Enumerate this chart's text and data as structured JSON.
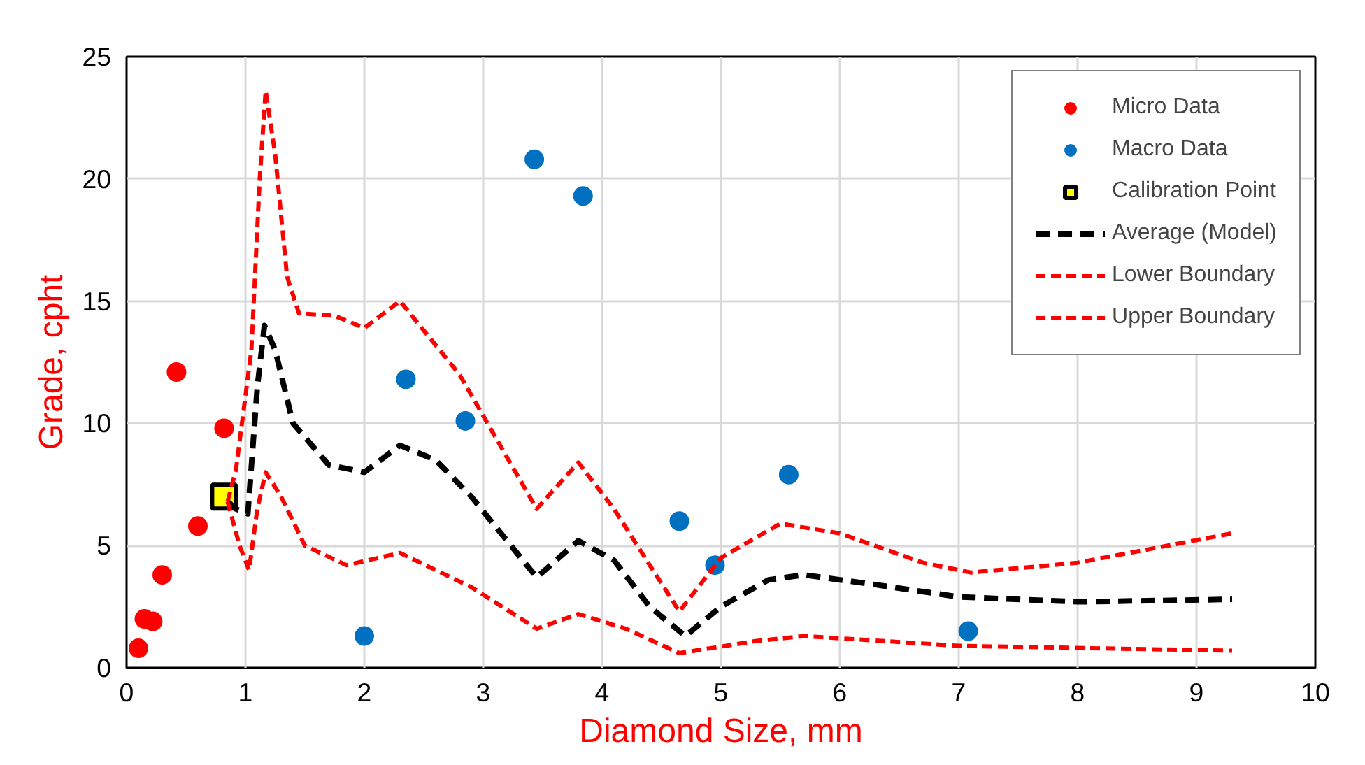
{
  "chart_data": {
    "type": "scatter",
    "xlabel": "Diamond Size, mm",
    "ylabel": "Grade, cpht",
    "xlim": [
      0,
      10
    ],
    "ylim": [
      0,
      25
    ],
    "xticks": [
      0,
      1,
      2,
      3,
      4,
      5,
      6,
      7,
      8,
      9,
      10
    ],
    "yticks": [
      0,
      5,
      10,
      15,
      20,
      25
    ],
    "grid": true,
    "legend": "top right",
    "series": [
      {
        "name": "Micro Data",
        "marker": "circle",
        "color": "#ff0000",
        "x": [
          0.1,
          0.15,
          0.22,
          0.3,
          0.42,
          0.6,
          0.82
        ],
        "values": [
          0.8,
          2.0,
          1.9,
          3.8,
          12.1,
          5.8,
          9.8
        ]
      },
      {
        "name": "Macro Data",
        "marker": "circle",
        "color": "#0070c0",
        "x": [
          2.0,
          2.35,
          2.85,
          3.43,
          3.84,
          4.65,
          4.95,
          5.57,
          7.08
        ],
        "values": [
          1.3,
          11.8,
          10.1,
          20.8,
          19.3,
          6.0,
          4.2,
          7.9,
          1.5
        ]
      },
      {
        "name": "Calibration Point",
        "marker": "square",
        "color": "#ffff00",
        "x": [
          0.82
        ],
        "values": [
          7.0
        ]
      },
      {
        "name": "Average (Model)",
        "type": "line",
        "line_style": "dashed",
        "color": "#000000",
        "x": [
          0.85,
          0.92,
          1.02,
          1.1,
          1.16,
          1.25,
          1.4,
          1.7,
          2.0,
          2.3,
          2.6,
          2.9,
          3.2,
          3.45,
          3.8,
          4.1,
          4.4,
          4.7,
          5.0,
          5.4,
          5.7,
          6.3,
          7.0,
          8.0,
          9.3
        ],
        "values": [
          6.8,
          6.5,
          6.3,
          11.5,
          14.0,
          13.0,
          10.0,
          8.3,
          8.0,
          9.1,
          8.5,
          7.0,
          5.2,
          3.7,
          5.2,
          4.4,
          2.5,
          1.3,
          2.5,
          3.6,
          3.8,
          3.4,
          2.9,
          2.7,
          2.8
        ]
      },
      {
        "name": "Lower Boundary",
        "type": "line",
        "line_style": "dashed",
        "color": "#ff0000",
        "x": [
          0.85,
          0.95,
          1.03,
          1.1,
          1.17,
          1.3,
          1.5,
          1.85,
          2.3,
          2.9,
          3.45,
          3.8,
          4.2,
          4.65,
          5.3,
          5.7,
          7.0,
          9.3
        ],
        "values": [
          6.8,
          5.0,
          4.0,
          6.5,
          8.0,
          7.0,
          5.0,
          4.2,
          4.7,
          3.3,
          1.6,
          2.2,
          1.6,
          0.6,
          1.1,
          1.3,
          0.9,
          0.7
        ]
      },
      {
        "name": "Upper Boundary",
        "type": "line",
        "line_style": "dashed",
        "color": "#ff0000",
        "x": [
          0.85,
          0.92,
          1.05,
          1.12,
          1.17,
          1.25,
          1.35,
          1.45,
          1.75,
          2.0,
          2.3,
          2.8,
          3.45,
          3.8,
          4.1,
          4.65,
          5.0,
          5.5,
          6.0,
          6.7,
          7.1,
          8.0,
          9.3
        ],
        "values": [
          6.8,
          8.1,
          13.0,
          20.0,
          23.6,
          21.0,
          16.0,
          14.5,
          14.4,
          13.9,
          15.0,
          12.0,
          6.5,
          8.4,
          6.5,
          2.3,
          4.5,
          5.9,
          5.5,
          4.3,
          3.9,
          4.3,
          5.5
        ]
      }
    ]
  }
}
